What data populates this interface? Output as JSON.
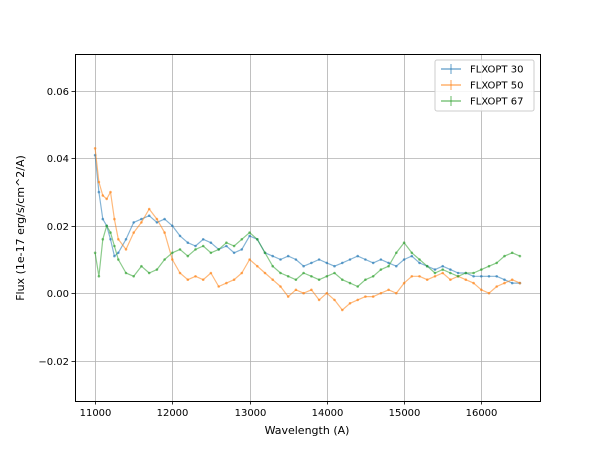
{
  "chart_data": {
    "type": "line",
    "title": "",
    "xlabel": "Wavelength (A)",
    "ylabel": "Flux (1e-17 erg/s/cm^2/A)",
    "xlim": [
      10740,
      16760
    ],
    "ylim": [
      -0.032,
      0.071
    ],
    "xticks": [
      11000,
      12000,
      13000,
      14000,
      15000,
      16000
    ],
    "xtick_labels": [
      "11000",
      "12000",
      "13000",
      "14000",
      "15000",
      "16000"
    ],
    "yticks": [
      -0.02,
      0.0,
      0.02,
      0.04,
      0.06
    ],
    "ytick_labels": [
      "−0.02",
      "0.00",
      "0.02",
      "0.04",
      "0.06"
    ],
    "grid": true,
    "legend_position": "top-right",
    "series": [
      {
        "name": "FLXOPT 30",
        "color": "#1f77b4",
        "x": [
          11000,
          11050,
          11100,
          11150,
          11200,
          11250,
          11300,
          11400,
          11500,
          11600,
          11700,
          11800,
          11900,
          12000,
          12100,
          12200,
          12300,
          12400,
          12500,
          12600,
          12700,
          12800,
          12900,
          13000,
          13100,
          13200,
          13300,
          13400,
          13500,
          13600,
          13700,
          13800,
          13900,
          14000,
          14100,
          14200,
          14300,
          14400,
          14500,
          14600,
          14700,
          14800,
          14900,
          15000,
          15100,
          15200,
          15300,
          15400,
          15500,
          15600,
          15700,
          15800,
          15900,
          16000,
          16100,
          16200,
          16300,
          16400,
          16500
        ],
        "y": [
          0.041,
          0.03,
          0.022,
          0.02,
          0.016,
          0.011,
          0.012,
          0.016,
          0.021,
          0.022,
          0.023,
          0.021,
          0.022,
          0.02,
          0.017,
          0.015,
          0.014,
          0.016,
          0.015,
          0.013,
          0.014,
          0.012,
          0.013,
          0.017,
          0.016,
          0.012,
          0.011,
          0.01,
          0.011,
          0.01,
          0.008,
          0.009,
          0.01,
          0.009,
          0.008,
          0.009,
          0.01,
          0.011,
          0.01,
          0.009,
          0.01,
          0.009,
          0.008,
          0.01,
          0.011,
          0.009,
          0.008,
          0.007,
          0.008,
          0.007,
          0.006,
          0.006,
          0.005,
          0.005,
          0.005,
          0.005,
          0.004,
          0.003,
          0.003
        ]
      },
      {
        "name": "FLXOPT 50",
        "color": "#ff7f0e",
        "x": [
          11000,
          11050,
          11100,
          11150,
          11200,
          11250,
          11300,
          11400,
          11500,
          11600,
          11700,
          11800,
          11900,
          12000,
          12100,
          12200,
          12300,
          12400,
          12500,
          12600,
          12700,
          12800,
          12900,
          13000,
          13100,
          13200,
          13300,
          13400,
          13500,
          13600,
          13700,
          13800,
          13900,
          14000,
          14100,
          14200,
          14300,
          14400,
          14500,
          14600,
          14700,
          14800,
          14900,
          15000,
          15100,
          15200,
          15300,
          15400,
          15500,
          15600,
          15700,
          15800,
          15900,
          16000,
          16100,
          16200,
          16300,
          16400,
          16500
        ],
        "y": [
          0.043,
          0.033,
          0.029,
          0.028,
          0.03,
          0.022,
          0.016,
          0.013,
          0.018,
          0.021,
          0.025,
          0.022,
          0.018,
          0.01,
          0.006,
          0.004,
          0.005,
          0.004,
          0.006,
          0.002,
          0.003,
          0.004,
          0.006,
          0.01,
          0.008,
          0.006,
          0.004,
          0.002,
          -0.001,
          0.001,
          0.0,
          0.001,
          -0.002,
          0.0,
          -0.002,
          -0.005,
          -0.003,
          -0.002,
          -0.001,
          -0.001,
          0.0,
          0.001,
          0.0,
          0.003,
          0.005,
          0.005,
          0.004,
          0.005,
          0.006,
          0.004,
          0.005,
          0.004,
          0.003,
          0.001,
          0.0,
          0.002,
          0.003,
          0.004,
          0.003
        ]
      },
      {
        "name": "FLXOPT 67",
        "color": "#2ca02c",
        "x": [
          11000,
          11050,
          11100,
          11150,
          11200,
          11250,
          11300,
          11400,
          11500,
          11600,
          11700,
          11800,
          11900,
          12000,
          12100,
          12200,
          12300,
          12400,
          12500,
          12600,
          12700,
          12800,
          12900,
          13000,
          13100,
          13200,
          13300,
          13400,
          13500,
          13600,
          13700,
          13800,
          13900,
          14000,
          14100,
          14200,
          14300,
          14400,
          14500,
          14600,
          14700,
          14800,
          14900,
          15000,
          15100,
          15200,
          15300,
          15400,
          15500,
          15600,
          15700,
          15800,
          15900,
          16000,
          16100,
          16200,
          16300,
          16400,
          16500
        ],
        "y": [
          0.012,
          0.005,
          0.016,
          0.02,
          0.018,
          0.014,
          0.01,
          0.006,
          0.005,
          0.008,
          0.006,
          0.007,
          0.01,
          0.012,
          0.013,
          0.011,
          0.013,
          0.014,
          0.012,
          0.013,
          0.015,
          0.014,
          0.016,
          0.018,
          0.016,
          0.012,
          0.008,
          0.006,
          0.005,
          0.004,
          0.006,
          0.005,
          0.004,
          0.005,
          0.006,
          0.004,
          0.003,
          0.002,
          0.004,
          0.005,
          0.007,
          0.008,
          0.012,
          0.015,
          0.012,
          0.01,
          0.008,
          0.006,
          0.007,
          0.006,
          0.005,
          0.006,
          0.006,
          0.007,
          0.008,
          0.009,
          0.011,
          0.012,
          0.011
        ]
      }
    ]
  }
}
